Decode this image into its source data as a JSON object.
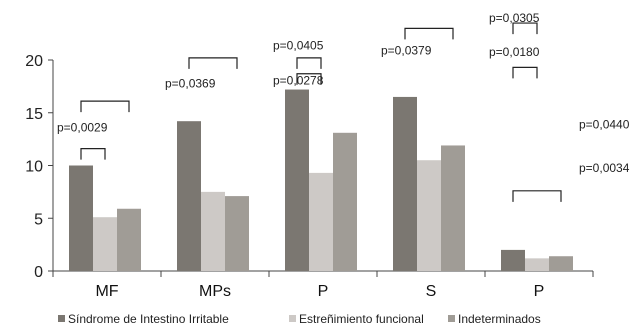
{
  "chart_data": {
    "type": "bar",
    "title": "",
    "xlabel": "",
    "ylabel": "",
    "categories": [
      "MF",
      "MPs",
      "P",
      "S",
      "P"
    ],
    "series": [
      {
        "name": "Síndrome de Intestino Irritable",
        "color": "#7b7771",
        "values": [
          10.0,
          14.2,
          17.2,
          16.5,
          2.0
        ]
      },
      {
        "name": "Estreñimiento funcional",
        "color": "#cdc9c6",
        "values": [
          5.1,
          7.5,
          9.3,
          10.5,
          1.2
        ]
      },
      {
        "name": "Indeterminados",
        "color": "#a09c96",
        "values": [
          5.9,
          7.1,
          13.1,
          11.9,
          1.4
        ]
      }
    ],
    "ylim": [
      0,
      20
    ],
    "yticks": [
      0,
      5,
      10,
      15,
      20
    ],
    "grid": false,
    "legend_position": "bottom",
    "annotations": [
      {
        "text": "p=0,0029",
        "category": 0,
        "from": 0,
        "to": 1,
        "y": 11.6
      },
      {
        "text": "p=0,0029",
        "category": 0,
        "from": 0,
        "to": 2,
        "y": 16.1,
        "label": false
      },
      {
        "text": "p=0,0369",
        "category": 1,
        "from": 0,
        "to": 2,
        "y": 20.2
      },
      {
        "text": "p=0,0405",
        "category": 2,
        "from": 0,
        "to": 1,
        "y": 20.2
      },
      {
        "text": "p=0,0278",
        "category": 2,
        "from": 0,
        "to": 1,
        "y": 18.7,
        "label": false
      },
      {
        "text": "p=0,0379",
        "category": 3,
        "from": 0,
        "to": 2,
        "y": 23.0
      },
      {
        "text": "p=0,0305",
        "category": 4,
        "from": 0,
        "to": 1,
        "y": 23.5,
        "label": false
      },
      {
        "text": "p=0,0180",
        "category": 4,
        "from": 0,
        "to": 1,
        "y": 19.3
      },
      {
        "text": "p=0,0034",
        "category": 4,
        "from": 0,
        "to": 2,
        "y": 7.6
      }
    ],
    "labels": [
      {
        "text": "p=0,0029",
        "category": 0,
        "y": 13.2
      },
      {
        "text": "p=0,0369",
        "category": 1,
        "y": 17.4
      },
      {
        "text": "p=0,0405",
        "category": 2,
        "y": 21.0
      },
      {
        "text": "p=0,0278",
        "category": 2,
        "y": 17.7
      },
      {
        "text": "p=0,0379",
        "category": 3,
        "y": 20.5
      },
      {
        "text": "p=0,0305",
        "category": 4,
        "y": 23.6
      },
      {
        "text": "p=0,0180",
        "category": 4,
        "y": 20.4
      },
      {
        "text": "p=0,0440",
        "category": 4,
        "y": 13.5,
        "offset": "right"
      },
      {
        "text": "p=0,0034",
        "category": 4,
        "y": 9.4,
        "offset": "right"
      }
    ]
  }
}
